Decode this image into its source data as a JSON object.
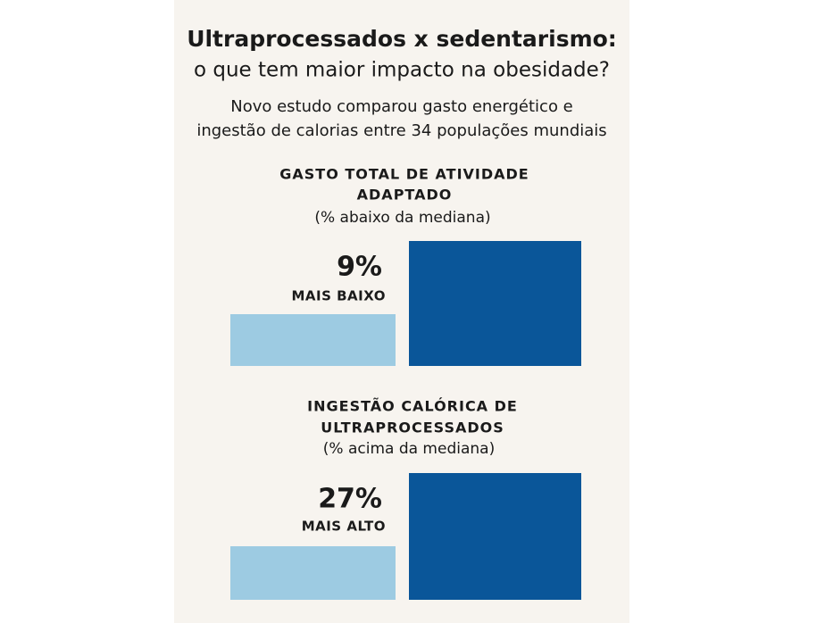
{
  "header": {
    "title": [
      "Ultraprocessados x sedentarismo:",
      "o que tem maior impacto na obesidade?"
    ],
    "subtitle": [
      "Novo estudo comparou gasto energético e",
      "ingestão de calorias entre 34 populações mundiais"
    ]
  },
  "sections": [
    {
      "heading": [
        "GASTO TOTAL DE ATIVIDADE",
        "ADAPTADO"
      ],
      "note": "(% abaixo da mediana)",
      "value": "9%",
      "value_caption": "MAIS BAIXO"
    },
    {
      "heading": [
        "INGESTÃO CALÓRICA DE",
        "ULTRAPROCESSADOS"
      ],
      "note": "(% acima da mediana)",
      "value": "27%",
      "value_caption": "MAIS ALTO"
    }
  ]
}
